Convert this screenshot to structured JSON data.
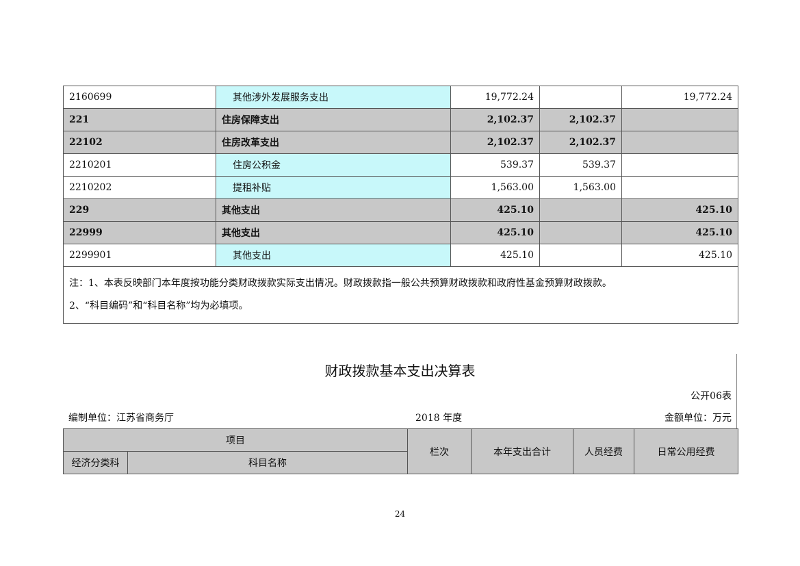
{
  "table1": {
    "rows": [
      {
        "code": "2160699",
        "name": "其他涉外发展服务支出",
        "total": "19,772.24",
        "basic": "",
        "project": "19,772.24",
        "level": "item"
      },
      {
        "code": "221",
        "name": "住房保障支出",
        "total": "2,102.37",
        "basic": "2,102.37",
        "project": "",
        "level": "sum"
      },
      {
        "code": "22102",
        "name": "住房改革支出",
        "total": "2,102.37",
        "basic": "2,102.37",
        "project": "",
        "level": "sum"
      },
      {
        "code": "2210201",
        "name": "住房公积金",
        "total": "539.37",
        "basic": "539.37",
        "project": "",
        "level": "item"
      },
      {
        "code": "2210202",
        "name": "提租补贴",
        "total": "1,563.00",
        "basic": "1,563.00",
        "project": "",
        "level": "item"
      },
      {
        "code": "229",
        "name": "其他支出",
        "total": "425.10",
        "basic": "",
        "project": "425.10",
        "level": "sum"
      },
      {
        "code": "22999",
        "name": "其他支出",
        "total": "425.10",
        "basic": "",
        "project": "425.10",
        "level": "sum"
      },
      {
        "code": "2299901",
        "name": "其他支出",
        "total": "425.10",
        "basic": "",
        "project": "425.10",
        "level": "item"
      }
    ],
    "notes": [
      "注：1、本表反映部门本年度按功能分类财政拨款实际支出情况。财政拨款指一般公共预算财政拨款和政府性基金预算财政拨款。",
      "2、“科目编码”和“科目名称”均为必填项。"
    ]
  },
  "table2": {
    "title": "财政拨款基本支出决算表",
    "form_no": "公开06表",
    "unit": "编制单位：江苏省商务厅",
    "year": "2018 年度",
    "currency": "金额单位：万元",
    "headers": {
      "item": "项目",
      "econ": "经济分类科",
      "subject": "科目名称",
      "col": "栏次",
      "total": "本年支出合计",
      "personnel": "人员经费",
      "public": "日常公用经费"
    }
  },
  "page_number": "24"
}
